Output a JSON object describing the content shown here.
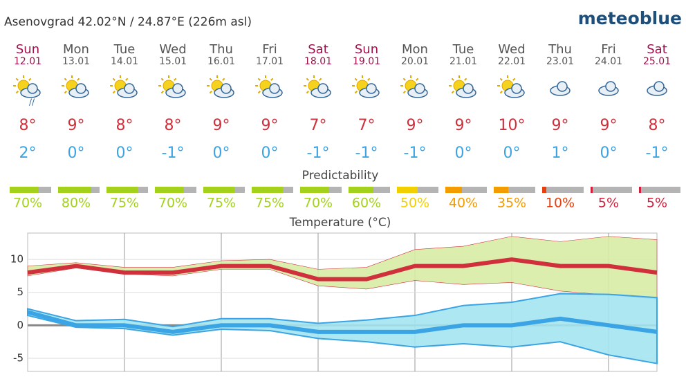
{
  "header": {
    "location": "Asenovgrad  42.02°N / 24.87°E (226m asl)",
    "logo": "meteoblue"
  },
  "days": [
    {
      "name": "Sun",
      "date": "12.01",
      "color": "#a0104a",
      "max": "8°",
      "min": "2°"
    },
    {
      "name": "Mon",
      "date": "13.01",
      "color": "#555555",
      "max": "9°",
      "min": "0°"
    },
    {
      "name": "Tue",
      "date": "14.01",
      "color": "#555555",
      "max": "8°",
      "min": "0°"
    },
    {
      "name": "Wed",
      "date": "15.01",
      "color": "#555555",
      "max": "8°",
      "min": "-1°"
    },
    {
      "name": "Thu",
      "date": "16.01",
      "color": "#555555",
      "max": "9°",
      "min": "0°"
    },
    {
      "name": "Fri",
      "date": "17.01",
      "color": "#555555",
      "max": "9°",
      "min": "0°"
    },
    {
      "name": "Sat",
      "date": "18.01",
      "color": "#a0104a",
      "max": "7°",
      "min": "-1°"
    },
    {
      "name": "Sun",
      "date": "19.01",
      "color": "#a0104a",
      "max": "7°",
      "min": "-1°"
    },
    {
      "name": "Mon",
      "date": "20.01",
      "color": "#555555",
      "max": "9°",
      "min": "-1°"
    },
    {
      "name": "Tue",
      "date": "21.01",
      "color": "#555555",
      "max": "9°",
      "min": "0°"
    },
    {
      "name": "Wed",
      "date": "22.01",
      "color": "#555555",
      "max": "10°",
      "min": "0°"
    },
    {
      "name": "Thu",
      "date": "23.01",
      "color": "#555555",
      "max": "9°",
      "min": "1°"
    },
    {
      "name": "Fri",
      "date": "24.01",
      "color": "#555555",
      "max": "9°",
      "min": "0°"
    },
    {
      "name": "Sat",
      "date": "25.01",
      "color": "#a0104a",
      "max": "8°",
      "min": "-1°"
    }
  ],
  "predictability": {
    "title": "Predictability",
    "values": [
      70,
      80,
      75,
      70,
      75,
      75,
      70,
      60,
      50,
      40,
      35,
      10,
      5,
      5
    ],
    "value_labels": [
      "70%",
      "80%",
      "75%",
      "70%",
      "75%",
      "75%",
      "70%",
      "60%",
      "50%",
      "40%",
      "35%",
      "10%",
      "5%",
      "5%"
    ],
    "colors": [
      "#a4d21c",
      "#a4d21c",
      "#a4d21c",
      "#a4d21c",
      "#a4d21c",
      "#a4d21c",
      "#a4d21c",
      "#a4d21c",
      "#f2d000",
      "#f29c00",
      "#f29c00",
      "#e8400c",
      "#d0203c",
      "#d0203c"
    ]
  },
  "chart_data": {
    "type": "line",
    "title": "Temperature (°C)",
    "ylim": [
      -7,
      14
    ],
    "yticks": [
      10,
      5,
      0,
      -5
    ],
    "grid": true,
    "bands": [
      {
        "color": "#d8eca4",
        "upper": [
          9,
          9.5,
          8.8,
          8.8,
          9.8,
          10,
          8.5,
          8.8,
          11.5,
          12,
          13.5,
          12.7,
          13.5,
          13
        ],
        "lower": [
          7.5,
          8.7,
          7.8,
          7.5,
          8.5,
          8.5,
          6,
          5.5,
          6.8,
          6.2,
          6.5,
          5.2,
          4.6,
          4
        ]
      },
      {
        "color": "#a4e4f0",
        "upper": [
          2.5,
          0.7,
          0.9,
          -0.2,
          1,
          1,
          0.3,
          0.8,
          1.5,
          3,
          3.5,
          4.8,
          4.7,
          4.2
        ],
        "lower": [
          1.5,
          -0.3,
          -0.5,
          -1.5,
          -0.6,
          -0.8,
          -2,
          -2.5,
          -3.3,
          -2.8,
          -3.3,
          -2.5,
          -4.5,
          -5.8
        ]
      }
    ],
    "series": [
      {
        "color": "#d0303c",
        "values": [
          8,
          9,
          8,
          8,
          9,
          9,
          7,
          7,
          9,
          9,
          10,
          9,
          9,
          8
        ]
      },
      {
        "color": "#3aa4e4",
        "values": [
          2,
          0,
          0,
          -1,
          0,
          0,
          -1,
          -1,
          -1,
          0,
          0,
          1,
          0,
          -1
        ]
      }
    ]
  }
}
